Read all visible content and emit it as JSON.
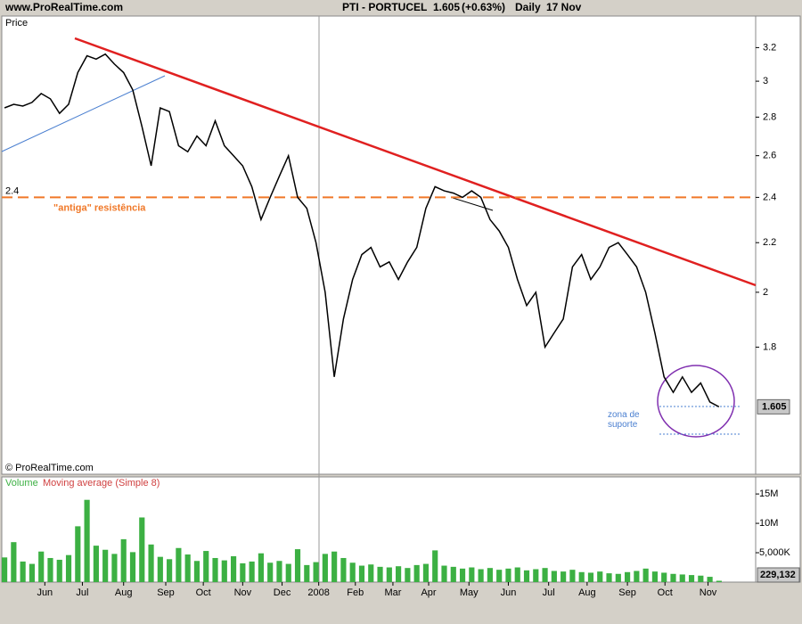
{
  "header": {
    "site": "www.ProRealTime.com",
    "title": "PTI - PORTUCEL",
    "last_price": 1.605,
    "change": "(+0.63%)",
    "period": "Daily",
    "date": "17 Nov"
  },
  "chart_data": [
    {
      "type": "line",
      "y_label": "Price",
      "log_scale": true,
      "color": "#000000",
      "copyright": "© ProRealTime.com",
      "resistance_level": 2.4,
      "resistance_label": "\"antiga\" resistência",
      "support_label": "zona de suporte",
      "xlim": [
        -0.3,
        82
      ],
      "ylim": [
        1.41,
        3.4
      ],
      "yticks": [
        3.2,
        3,
        2.8,
        2.6,
        2.4,
        2.2,
        2,
        1.8
      ],
      "x": [
        0,
        1,
        2,
        3,
        4,
        5,
        6,
        7,
        8,
        9,
        10,
        11,
        12,
        13,
        14,
        15,
        16,
        17,
        18,
        19,
        20,
        21,
        22,
        23,
        24,
        25,
        26,
        27,
        28,
        29,
        30,
        31,
        32,
        33,
        34,
        35,
        36,
        37,
        38,
        39,
        40,
        41,
        42,
        43,
        44,
        45,
        46,
        47,
        48,
        49,
        50,
        51,
        52,
        53,
        54,
        55,
        56,
        57,
        58,
        59,
        60,
        61,
        62,
        63,
        64,
        65,
        66,
        67,
        68,
        69,
        70,
        71,
        72,
        73,
        74,
        75,
        76,
        77,
        78
      ],
      "values": [
        2.85,
        2.87,
        2.86,
        2.88,
        2.93,
        2.9,
        2.82,
        2.87,
        3.05,
        3.15,
        3.13,
        3.16,
        3.1,
        3.05,
        2.95,
        2.75,
        2.55,
        2.85,
        2.83,
        2.65,
        2.62,
        2.7,
        2.65,
        2.78,
        2.65,
        2.6,
        2.55,
        2.45,
        2.3,
        2.4,
        2.5,
        2.6,
        2.4,
        2.35,
        2.2,
        2.0,
        1.7,
        1.9,
        2.05,
        2.15,
        2.18,
        2.1,
        2.12,
        2.05,
        2.12,
        2.18,
        2.35,
        2.45,
        2.43,
        2.42,
        2.4,
        2.43,
        2.4,
        2.3,
        2.25,
        2.18,
        2.05,
        1.95,
        2.0,
        1.8,
        1.85,
        1.9,
        2.1,
        2.15,
        2.05,
        2.1,
        2.18,
        2.2,
        2.15,
        2.1,
        2.0,
        1.85,
        1.7,
        1.65,
        1.7,
        1.65,
        1.68,
        1.62,
        1.605
      ]
    },
    {
      "type": "bar",
      "volume_label": "Volume",
      "ma_label": "Moving average (Simple 8)",
      "color": "#3cb043",
      "last_volume": {
        "value": 229132,
        "label": "229,132"
      },
      "xlim": [
        -0.3,
        82
      ],
      "ylim": [
        0,
        17900000
      ],
      "yticks": [
        {
          "value": 15000000,
          "label": "15M"
        },
        {
          "value": 10000000,
          "label": "10M"
        },
        {
          "value": 5000000,
          "label": "5,000K"
        }
      ],
      "xticks": [
        {
          "value": 4.4,
          "label": "Jun"
        },
        {
          "value": 8.5,
          "label": "Jul"
        },
        {
          "value": 13,
          "label": "Aug"
        },
        {
          "value": 17.6,
          "label": "Sep"
        },
        {
          "value": 21.7,
          "label": "Oct"
        },
        {
          "value": 26,
          "label": "Nov"
        },
        {
          "value": 30.3,
          "label": "Dec"
        },
        {
          "value": 34.3,
          "label": "2008"
        },
        {
          "value": 38.3,
          "label": "Feb"
        },
        {
          "value": 42.4,
          "label": "Mar"
        },
        {
          "value": 46.3,
          "label": "Apr"
        },
        {
          "value": 50.7,
          "label": "May"
        },
        {
          "value": 55,
          "label": "Jun"
        },
        {
          "value": 59.4,
          "label": "Jul"
        },
        {
          "value": 63.6,
          "label": "Aug"
        },
        {
          "value": 68,
          "label": "Sep"
        },
        {
          "value": 72.1,
          "label": "Oct"
        },
        {
          "value": 76.8,
          "label": "Nov"
        }
      ],
      "x": [
        0,
        1,
        2,
        3,
        4,
        5,
        6,
        7,
        8,
        9,
        10,
        11,
        12,
        13,
        14,
        15,
        16,
        17,
        18,
        19,
        20,
        21,
        22,
        23,
        24,
        25,
        26,
        27,
        28,
        29,
        30,
        31,
        32,
        33,
        34,
        35,
        36,
        37,
        38,
        39,
        40,
        41,
        42,
        43,
        44,
        45,
        46,
        47,
        48,
        49,
        50,
        51,
        52,
        53,
        54,
        55,
        56,
        57,
        58,
        59,
        60,
        61,
        62,
        63,
        64,
        65,
        66,
        67,
        68,
        69,
        70,
        71,
        72,
        73,
        74,
        75,
        76,
        77,
        78
      ],
      "values": [
        4200000,
        6800000,
        3500000,
        3100000,
        5200000,
        4100000,
        3800000,
        4600000,
        9500000,
        14000000,
        6200000,
        5500000,
        4800000,
        7300000,
        5100000,
        11000000,
        6400000,
        4300000,
        3900000,
        5800000,
        4700000,
        3600000,
        5300000,
        4100000,
        3700000,
        4400000,
        3200000,
        3500000,
        4900000,
        3300000,
        3600000,
        3100000,
        5600000,
        2900000,
        3400000,
        4800000,
        5200000,
        4100000,
        3300000,
        2800000,
        3000000,
        2600000,
        2500000,
        2700000,
        2400000,
        2900000,
        3100000,
        5400000,
        2800000,
        2600000,
        2300000,
        2500000,
        2200000,
        2400000,
        2100000,
        2300000,
        2500000,
        2000000,
        2200000,
        2400000,
        1900000,
        1800000,
        2100000,
        1700000,
        1600000,
        1800000,
        1500000,
        1400000,
        1700000,
        1900000,
        2300000,
        1800000,
        1600000,
        1400000,
        1300000,
        1200000,
        1100000,
        900000,
        229132
      ]
    }
  ]
}
